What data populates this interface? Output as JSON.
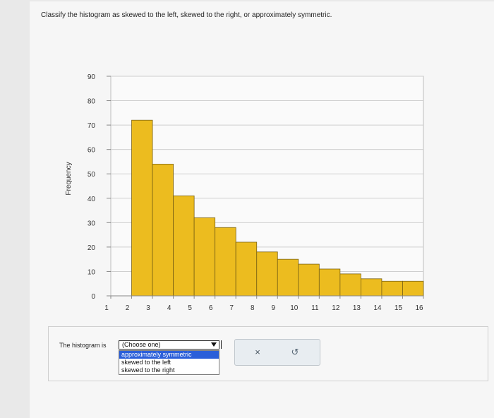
{
  "question": "Classify the histogram as skewed to the left, skewed to the right, or approximately symmetric.",
  "answer": {
    "prompt": "The histogram is",
    "selected": "(Choose one)",
    "options": [
      "approximately symmetric",
      "skewed to the left",
      "skewed to the right"
    ]
  },
  "buttons": {
    "clear": "×",
    "undo": "↺"
  },
  "colors": {
    "bar_fill": "#ecbc1f",
    "bar_stroke": "#7a6215",
    "selected_option": "#2b5fd9"
  },
  "chart_data": {
    "type": "bar",
    "ylabel": "Frequency",
    "xlabel": "",
    "title": "",
    "ylim": [
      0,
      90
    ],
    "yticks": [
      0,
      10,
      20,
      30,
      40,
      50,
      60,
      70,
      80,
      90
    ],
    "xlim": [
      1,
      16
    ],
    "xticks": [
      1,
      2,
      3,
      4,
      5,
      6,
      7,
      8,
      9,
      10,
      11,
      12,
      13,
      14,
      15,
      16
    ],
    "bins": [
      {
        "start": 2,
        "end": 3,
        "value": 72
      },
      {
        "start": 3,
        "end": 4,
        "value": 54
      },
      {
        "start": 4,
        "end": 5,
        "value": 41
      },
      {
        "start": 5,
        "end": 6,
        "value": 32
      },
      {
        "start": 6,
        "end": 7,
        "value": 28
      },
      {
        "start": 7,
        "end": 8,
        "value": 22
      },
      {
        "start": 8,
        "end": 9,
        "value": 18
      },
      {
        "start": 9,
        "end": 10,
        "value": 15
      },
      {
        "start": 10,
        "end": 11,
        "value": 13
      },
      {
        "start": 11,
        "end": 12,
        "value": 11
      },
      {
        "start": 12,
        "end": 13,
        "value": 9
      },
      {
        "start": 13,
        "end": 14,
        "value": 7
      },
      {
        "start": 14,
        "end": 15,
        "value": 6
      },
      {
        "start": 15,
        "end": 16,
        "value": 6
      }
    ],
    "grid": true
  }
}
